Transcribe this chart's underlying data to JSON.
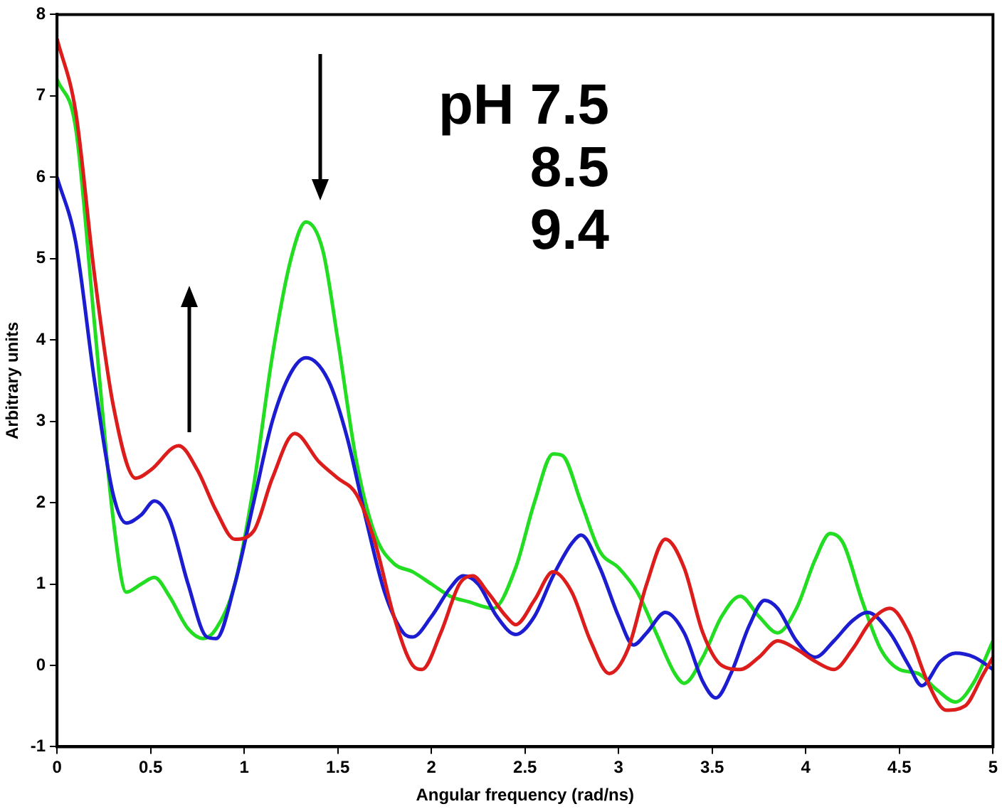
{
  "chart_data": {
    "type": "line",
    "xlabel": "Angular frequency (rad/ns)",
    "ylabel": "Arbitrary units",
    "xlim": [
      0,
      5
    ],
    "xticks": [
      0,
      0.5,
      1,
      1.5,
      2,
      2.5,
      3,
      3.5,
      4,
      4.5,
      5
    ],
    "ylim": [
      -1,
      8
    ],
    "yticks": [
      -1,
      0,
      1,
      2,
      3,
      4,
      5,
      6,
      7,
      8
    ],
    "grid": false,
    "legend": false,
    "marker": "none",
    "line_style": "solid",
    "annotations": [
      "pH 7.5",
      "8.5",
      "9.4"
    ],
    "series": [
      {
        "color": "#dd1c1c",
        "x": [
          0,
          0.1,
          0.2,
          0.3,
          0.42,
          0.5,
          0.65,
          0.75,
          0.85,
          0.95,
          1.05,
          1.15,
          1.27,
          1.4,
          1.5,
          1.6,
          1.7,
          1.8,
          1.9,
          1.95,
          2.05,
          2.15,
          2.22,
          2.3,
          2.4,
          2.45,
          2.55,
          2.65,
          2.75,
          2.85,
          2.95,
          3.05,
          3.15,
          3.25,
          3.35,
          3.45,
          3.55,
          3.65,
          3.75,
          3.85,
          3.95,
          4.05,
          4.15,
          4.25,
          4.35,
          4.45,
          4.55,
          4.65,
          4.75,
          4.85,
          4.95,
          5
        ],
        "values": [
          7.7,
          6.8,
          4.8,
          3.2,
          2.3,
          2.4,
          2.7,
          2.4,
          1.9,
          1.55,
          1.65,
          2.3,
          2.85,
          2.5,
          2.3,
          2.1,
          1.5,
          0.6,
          0.0,
          -0.05,
          0.4,
          1.0,
          1.1,
          0.9,
          0.6,
          0.5,
          0.8,
          1.15,
          0.9,
          0.3,
          -0.1,
          0.2,
          1.0,
          1.55,
          1.2,
          0.4,
          0.0,
          -0.05,
          0.1,
          0.3,
          0.2,
          0.05,
          -0.05,
          0.2,
          0.55,
          0.7,
          0.4,
          -0.2,
          -0.55,
          -0.5,
          -0.1,
          0.1
        ]
      },
      {
        "color": "#1c1cd0",
        "x": [
          0,
          0.1,
          0.2,
          0.3,
          0.37,
          0.45,
          0.52,
          0.6,
          0.7,
          0.8,
          0.85,
          0.95,
          1.05,
          1.15,
          1.25,
          1.33,
          1.45,
          1.55,
          1.65,
          1.75,
          1.85,
          1.9,
          2.0,
          2.1,
          2.17,
          2.25,
          2.35,
          2.45,
          2.55,
          2.65,
          2.75,
          2.8,
          2.9,
          3.0,
          3.08,
          3.15,
          3.25,
          3.35,
          3.45,
          3.52,
          3.6,
          3.7,
          3.78,
          3.85,
          3.95,
          4.05,
          4.15,
          4.25,
          4.33,
          4.45,
          4.55,
          4.62,
          4.72,
          4.8,
          4.9,
          5
        ],
        "values": [
          6.0,
          5.2,
          3.5,
          2.1,
          1.75,
          1.85,
          2.02,
          1.8,
          1.0,
          0.35,
          0.33,
          1.0,
          2.0,
          3.0,
          3.6,
          3.78,
          3.5,
          2.8,
          1.8,
          0.9,
          0.4,
          0.35,
          0.6,
          0.95,
          1.1,
          1.0,
          0.6,
          0.38,
          0.6,
          1.1,
          1.5,
          1.6,
          1.2,
          0.6,
          0.25,
          0.4,
          0.65,
          0.4,
          -0.2,
          -0.4,
          -0.1,
          0.5,
          0.8,
          0.7,
          0.3,
          0.1,
          0.3,
          0.55,
          0.65,
          0.4,
          0.0,
          -0.25,
          0.05,
          0.15,
          0.1,
          -0.05
        ]
      },
      {
        "color": "#22dd22",
        "x": [
          0,
          0.1,
          0.2,
          0.3,
          0.37,
          0.45,
          0.52,
          0.6,
          0.7,
          0.78,
          0.85,
          0.95,
          1.05,
          1.15,
          1.25,
          1.33,
          1.42,
          1.5,
          1.6,
          1.7,
          1.8,
          1.9,
          2.0,
          2.1,
          2.2,
          2.33,
          2.45,
          2.55,
          2.65,
          2.7,
          2.8,
          2.9,
          3.0,
          3.1,
          3.2,
          3.3,
          3.35,
          3.45,
          3.55,
          3.65,
          3.75,
          3.85,
          3.95,
          4.05,
          4.13,
          4.2,
          4.3,
          4.4,
          4.5,
          4.6,
          4.7,
          4.8,
          4.9,
          5
        ],
        "values": [
          7.2,
          6.6,
          4.2,
          1.8,
          0.9,
          1.0,
          1.08,
          0.85,
          0.45,
          0.33,
          0.45,
          1.0,
          2.2,
          3.8,
          5.0,
          5.45,
          5.1,
          4.0,
          2.5,
          1.6,
          1.25,
          1.15,
          1.0,
          0.85,
          0.78,
          0.7,
          1.2,
          2.0,
          2.6,
          2.58,
          2.0,
          1.4,
          1.2,
          0.9,
          0.4,
          -0.1,
          -0.22,
          0.1,
          0.6,
          0.85,
          0.6,
          0.4,
          0.7,
          1.3,
          1.62,
          1.5,
          0.8,
          0.2,
          -0.05,
          -0.1,
          -0.3,
          -0.45,
          -0.2,
          0.3
        ]
      }
    ]
  }
}
